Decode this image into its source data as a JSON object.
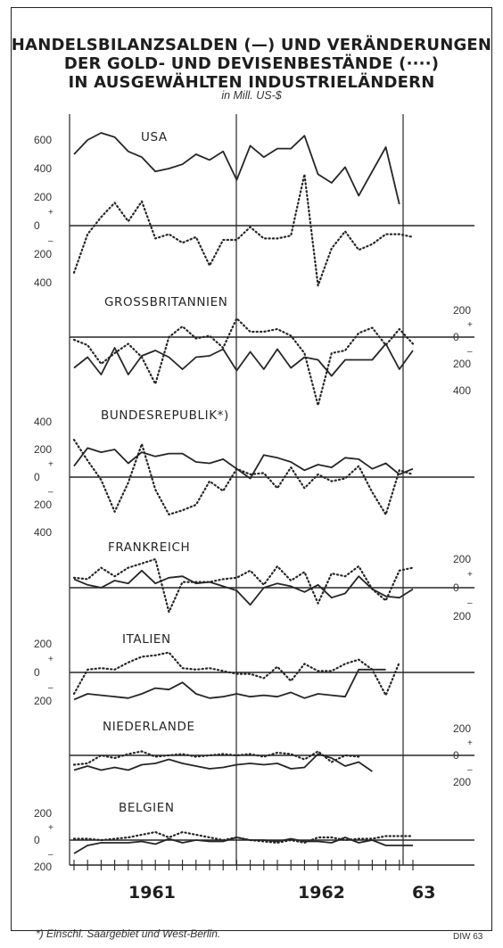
{
  "title_lines": [
    "HANDELSBILANZSALDEN (—) UND VERÄNDERUNGEN",
    "DER GOLD- UND DEVISENBESTÄNDE (····)",
    "IN AUSGEWÄHLTEN INDUSTRIELÄNDERN"
  ],
  "unit": "in Mill. US-$",
  "footnote": "*) Einschl. Saargebiet und West-Berlin.",
  "source": "DIW 63",
  "years": [
    "1961",
    "1962",
    "63"
  ],
  "colors": {
    "line": "#262626",
    "background": "#ffffff"
  },
  "chart_data": {
    "type": "line",
    "x": [
      "1961-01",
      "1961-02",
      "1961-03",
      "1961-04",
      "1961-05",
      "1961-06",
      "1961-07",
      "1961-08",
      "1961-09",
      "1961-10",
      "1961-11",
      "1961-12",
      "1962-01",
      "1962-02",
      "1962-03",
      "1962-04",
      "1962-05",
      "1962-06",
      "1962-07",
      "1962-08",
      "1962-09",
      "1962-10",
      "1962-11",
      "1962-12",
      "1963-01",
      "1963-02"
    ],
    "panels": [
      {
        "title": "USA",
        "ticks": [
          {
            "label": "600",
            "value": 600
          },
          {
            "label": "400",
            "value": 400
          },
          {
            "label": "200",
            "value": 200
          },
          {
            "label": "+",
            "value": 100
          },
          {
            "label": "0",
            "value": 0
          },
          {
            "label": "–",
            "value": -100
          },
          {
            "label": "200",
            "value": -200
          },
          {
            "label": "400",
            "value": -400
          }
        ],
        "tick_side": "left",
        "series": [
          {
            "style": "solid",
            "values": [
              500,
              600,
              650,
              620,
              520,
              480,
              380,
              400,
              430,
              500,
              460,
              520,
              320,
              560,
              480,
              540,
              540,
              630,
              360,
              300,
              410,
              210,
              380,
              550,
              150
            ]
          },
          {
            "style": "dotted",
            "values": [
              -330,
              -60,
              60,
              160,
              30,
              170,
              -90,
              -60,
              -120,
              -80,
              -280,
              -100,
              -100,
              -10,
              -90,
              -90,
              -70,
              360,
              -420,
              -160,
              -40,
              -170,
              -130,
              -60,
              -60,
              -80
            ]
          }
        ]
      },
      {
        "title": "GROSSBRITANNIEN",
        "ticks": [
          {
            "label": "200",
            "value": 200
          },
          {
            "label": "+",
            "value": 100
          },
          {
            "label": "0",
            "value": 0
          },
          {
            "label": "–",
            "value": -100
          },
          {
            "label": "200",
            "value": -200
          },
          {
            "label": "400",
            "value": -400
          }
        ],
        "tick_side": "right",
        "series": [
          {
            "style": "solid",
            "values": [
              -230,
              -150,
              -280,
              -80,
              -280,
              -140,
              -100,
              -150,
              -240,
              -150,
              -140,
              -90,
              -250,
              -110,
              -240,
              -90,
              -230,
              -150,
              -170,
              -290,
              -170,
              -170,
              -170,
              -50,
              -240,
              -100
            ]
          },
          {
            "style": "dotted",
            "values": [
              -20,
              -60,
              -200,
              -120,
              -50,
              -150,
              -350,
              0,
              80,
              -10,
              10,
              -80,
              140,
              40,
              40,
              60,
              10,
              -120,
              -510,
              -120,
              -100,
              30,
              70,
              -60,
              60,
              -50
            ]
          }
        ]
      },
      {
        "title": "BUNDESREPUBLIK*)",
        "ticks": [
          {
            "label": "400",
            "value": 400
          },
          {
            "label": "200",
            "value": 200
          },
          {
            "label": "+",
            "value": 100
          },
          {
            "label": "0",
            "value": 0
          },
          {
            "label": "–",
            "value": -100
          },
          {
            "label": "200",
            "value": -200
          },
          {
            "label": "400",
            "value": -400
          }
        ],
        "tick_side": "left",
        "series": [
          {
            "style": "solid",
            "values": [
              80,
              210,
              180,
              200,
              100,
              180,
              150,
              170,
              170,
              110,
              100,
              130,
              60,
              -10,
              160,
              140,
              110,
              50,
              90,
              70,
              140,
              130,
              60,
              100,
              20,
              60
            ]
          },
          {
            "style": "dotted",
            "values": [
              270,
              120,
              -20,
              -250,
              -40,
              240,
              -90,
              -270,
              -240,
              -200,
              -30,
              -100,
              60,
              20,
              30,
              -80,
              70,
              -80,
              20,
              -30,
              -10,
              80,
              -110,
              -270,
              50,
              20
            ]
          }
        ]
      },
      {
        "title": "FRANKREICH",
        "ticks": [
          {
            "label": "200",
            "value": 200
          },
          {
            "label": "+",
            "value": 100
          },
          {
            "label": "0",
            "value": 0
          },
          {
            "label": "–",
            "value": -100
          },
          {
            "label": "200",
            "value": -200
          }
        ],
        "tick_side": "right",
        "series": [
          {
            "style": "solid",
            "values": [
              60,
              20,
              0,
              50,
              30,
              120,
              30,
              70,
              80,
              30,
              40,
              10,
              -20,
              -120,
              0,
              30,
              10,
              -30,
              20,
              -70,
              -40,
              80,
              -10,
              -60,
              -70,
              -10
            ]
          },
          {
            "style": "dotted",
            "values": [
              70,
              60,
              140,
              80,
              140,
              170,
              200,
              -170,
              40,
              40,
              40,
              60,
              70,
              120,
              20,
              150,
              50,
              110,
              -110,
              100,
              80,
              150,
              -10,
              -90,
              120,
              140
            ]
          }
        ]
      },
      {
        "title": "ITALIEN",
        "ticks": [
          {
            "label": "200",
            "value": 200
          },
          {
            "label": "+",
            "value": 100
          },
          {
            "label": "0",
            "value": 0
          },
          {
            "label": "–",
            "value": -100
          },
          {
            "label": "200",
            "value": -200
          }
        ],
        "tick_side": "left",
        "series": [
          {
            "style": "solid",
            "values": [
              -190,
              -150,
              -160,
              -170,
              -180,
              -150,
              -110,
              -120,
              -70,
              -150,
              -180,
              -170,
              -150,
              -170,
              -160,
              -170,
              -140,
              -180,
              -150,
              -160,
              -170,
              20,
              20,
              20
            ]
          },
          {
            "style": "dotted",
            "values": [
              -150,
              20,
              30,
              20,
              70,
              110,
              120,
              140,
              30,
              20,
              30,
              10,
              -10,
              -10,
              -40,
              40,
              -60,
              60,
              10,
              10,
              60,
              90,
              20,
              -160,
              70
            ]
          }
        ]
      },
      {
        "title": "NIEDERLANDE",
        "ticks": [
          {
            "label": "200",
            "value": 200
          },
          {
            "label": "+",
            "value": 100
          },
          {
            "label": "0",
            "value": 0
          },
          {
            "label": "–",
            "value": -100
          },
          {
            "label": "200",
            "value": -200
          }
        ],
        "tick_side": "right",
        "series": [
          {
            "style": "solid",
            "values": [
              -110,
              -80,
              -110,
              -90,
              -110,
              -70,
              -60,
              -30,
              -60,
              -80,
              -100,
              -90,
              -70,
              -60,
              -70,
              -60,
              -100,
              -90,
              10,
              -20,
              -80,
              -50,
              -120
            ]
          },
          {
            "style": "dotted",
            "values": [
              -70,
              -60,
              0,
              -20,
              10,
              30,
              -10,
              0,
              10,
              -10,
              0,
              10,
              0,
              10,
              -10,
              20,
              10,
              -30,
              30,
              -50,
              0,
              -10
            ]
          }
        ]
      },
      {
        "title": "BELGIEN",
        "ticks": [
          {
            "label": "200",
            "value": 200
          },
          {
            "label": "+",
            "value": 100
          },
          {
            "label": "0",
            "value": 0
          },
          {
            "label": "–",
            "value": -100
          },
          {
            "label": "200",
            "value": -200
          }
        ],
        "tick_side": "left",
        "series": [
          {
            "style": "solid",
            "values": [
              -100,
              -40,
              -20,
              -20,
              -20,
              -10,
              -30,
              10,
              -20,
              0,
              -10,
              -10,
              20,
              0,
              0,
              -10,
              10,
              -10,
              -10,
              -20,
              20,
              -20,
              0,
              -40,
              -40,
              -40
            ]
          },
          {
            "style": "dotted",
            "values": [
              10,
              10,
              0,
              10,
              20,
              40,
              60,
              20,
              60,
              40,
              20,
              0,
              20,
              0,
              -10,
              -20,
              0,
              -20,
              20,
              20,
              0,
              10,
              10,
              30,
              30,
              30
            ]
          }
        ]
      }
    ]
  }
}
